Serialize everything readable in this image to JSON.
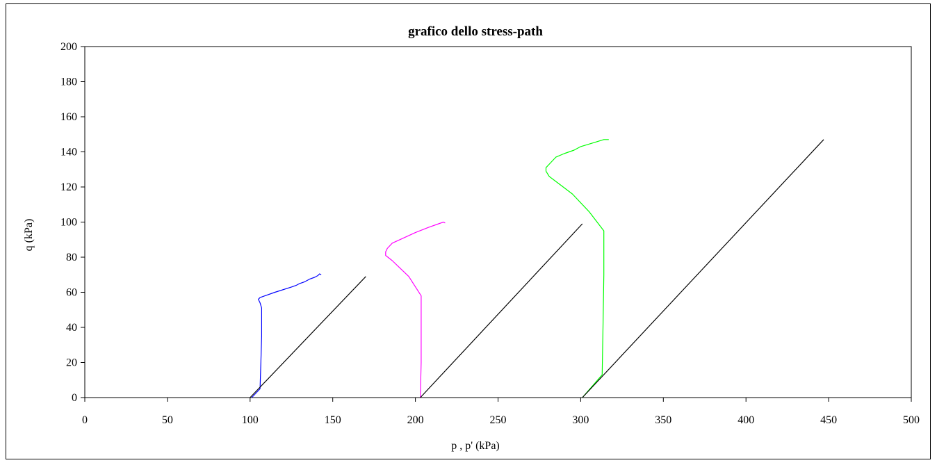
{
  "chart_data": {
    "type": "line",
    "title": "grafico dello stress-path",
    "xlabel": "p , p' (kPa)",
    "ylabel": "q (kPa)",
    "xlim": [
      0,
      500
    ],
    "ylim": [
      0,
      200
    ],
    "xticks": [
      0,
      50,
      100,
      150,
      200,
      250,
      300,
      350,
      400,
      450,
      500
    ],
    "yticks": [
      0,
      20,
      40,
      60,
      80,
      100,
      120,
      140,
      160,
      180,
      200
    ],
    "grid": false,
    "legend": "none",
    "series": [
      {
        "color": "#0000ff",
        "points": [
          [
            101,
            0
          ],
          [
            106,
            5
          ],
          [
            106.5,
            20
          ],
          [
            107,
            35
          ],
          [
            107,
            51
          ],
          [
            106,
            54
          ],
          [
            105,
            56
          ],
          [
            106,
            57
          ],
          [
            115,
            60
          ],
          [
            125,
            63
          ],
          [
            128,
            64
          ],
          [
            130,
            65
          ],
          [
            133,
            66
          ],
          [
            136,
            67.5
          ],
          [
            139,
            68.5
          ],
          [
            141,
            69.5
          ],
          [
            142,
            70.5
          ],
          [
            143,
            70
          ]
        ]
      },
      {
        "color": "#000000",
        "points": [
          [
            100,
            0
          ],
          [
            170,
            69
          ]
        ]
      },
      {
        "color": "#ff00ff",
        "points": [
          [
            203,
            0
          ],
          [
            203.5,
            20
          ],
          [
            203.5,
            40
          ],
          [
            203.5,
            58
          ],
          [
            196,
            69
          ],
          [
            186,
            78
          ],
          [
            182,
            81
          ],
          [
            182,
            83
          ],
          [
            183,
            85
          ],
          [
            186,
            88
          ],
          [
            193,
            91
          ],
          [
            200,
            94
          ],
          [
            208,
            97
          ],
          [
            214,
            99
          ],
          [
            217,
            100
          ],
          [
            218,
            99.5
          ]
        ]
      },
      {
        "color": "#000000",
        "points": [
          [
            203,
            0
          ],
          [
            301,
            99
          ]
        ]
      },
      {
        "color": "#00ff00",
        "points": [
          [
            301,
            0
          ],
          [
            313,
            13
          ],
          [
            313.5,
            40
          ],
          [
            314,
            70
          ],
          [
            314,
            95
          ],
          [
            305,
            106
          ],
          [
            295,
            116
          ],
          [
            288,
            121
          ],
          [
            281,
            126
          ],
          [
            279,
            129
          ],
          [
            279,
            131
          ],
          [
            282,
            134
          ],
          [
            285,
            137
          ],
          [
            290,
            139
          ],
          [
            296,
            141
          ],
          [
            300,
            143
          ],
          [
            307,
            145
          ],
          [
            314,
            147
          ],
          [
            317,
            147
          ]
        ]
      },
      {
        "color": "#000000",
        "points": [
          [
            301,
            0
          ],
          [
            447,
            147
          ]
        ]
      }
    ]
  }
}
